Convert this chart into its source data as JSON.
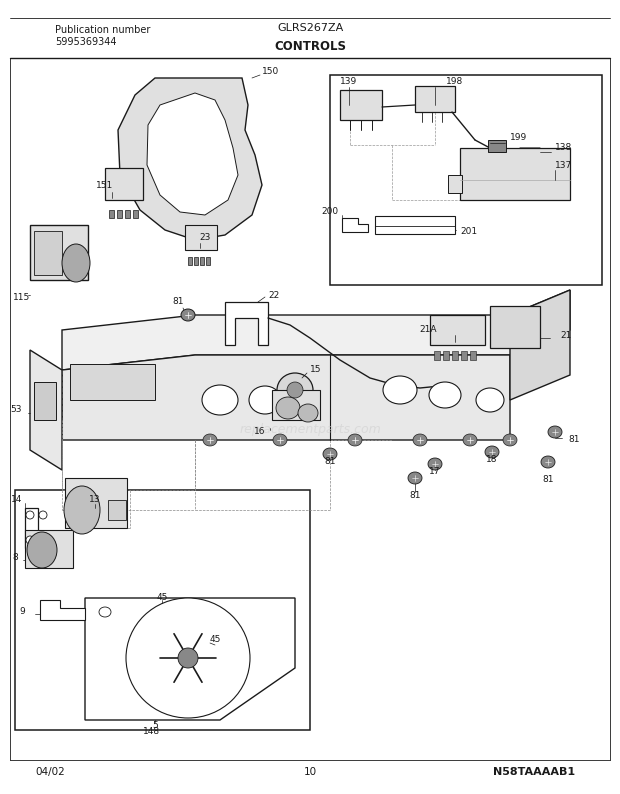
{
  "title_left_line1": "Publication number",
  "title_left_line2": "5995369344",
  "title_model": "GLRS267ZA",
  "title_section": "CONTROLS",
  "bottom_left": "04/02",
  "bottom_center": "10",
  "bottom_right": "N58TAAAAB1",
  "bg_color": "#ffffff",
  "line_color": "#1a1a1a",
  "text_color": "#1a1a1a",
  "gray_fill": "#c8c8c8",
  "light_gray": "#e0e0e0",
  "dark_gray": "#888888",
  "watermark_color": "#cccccc"
}
